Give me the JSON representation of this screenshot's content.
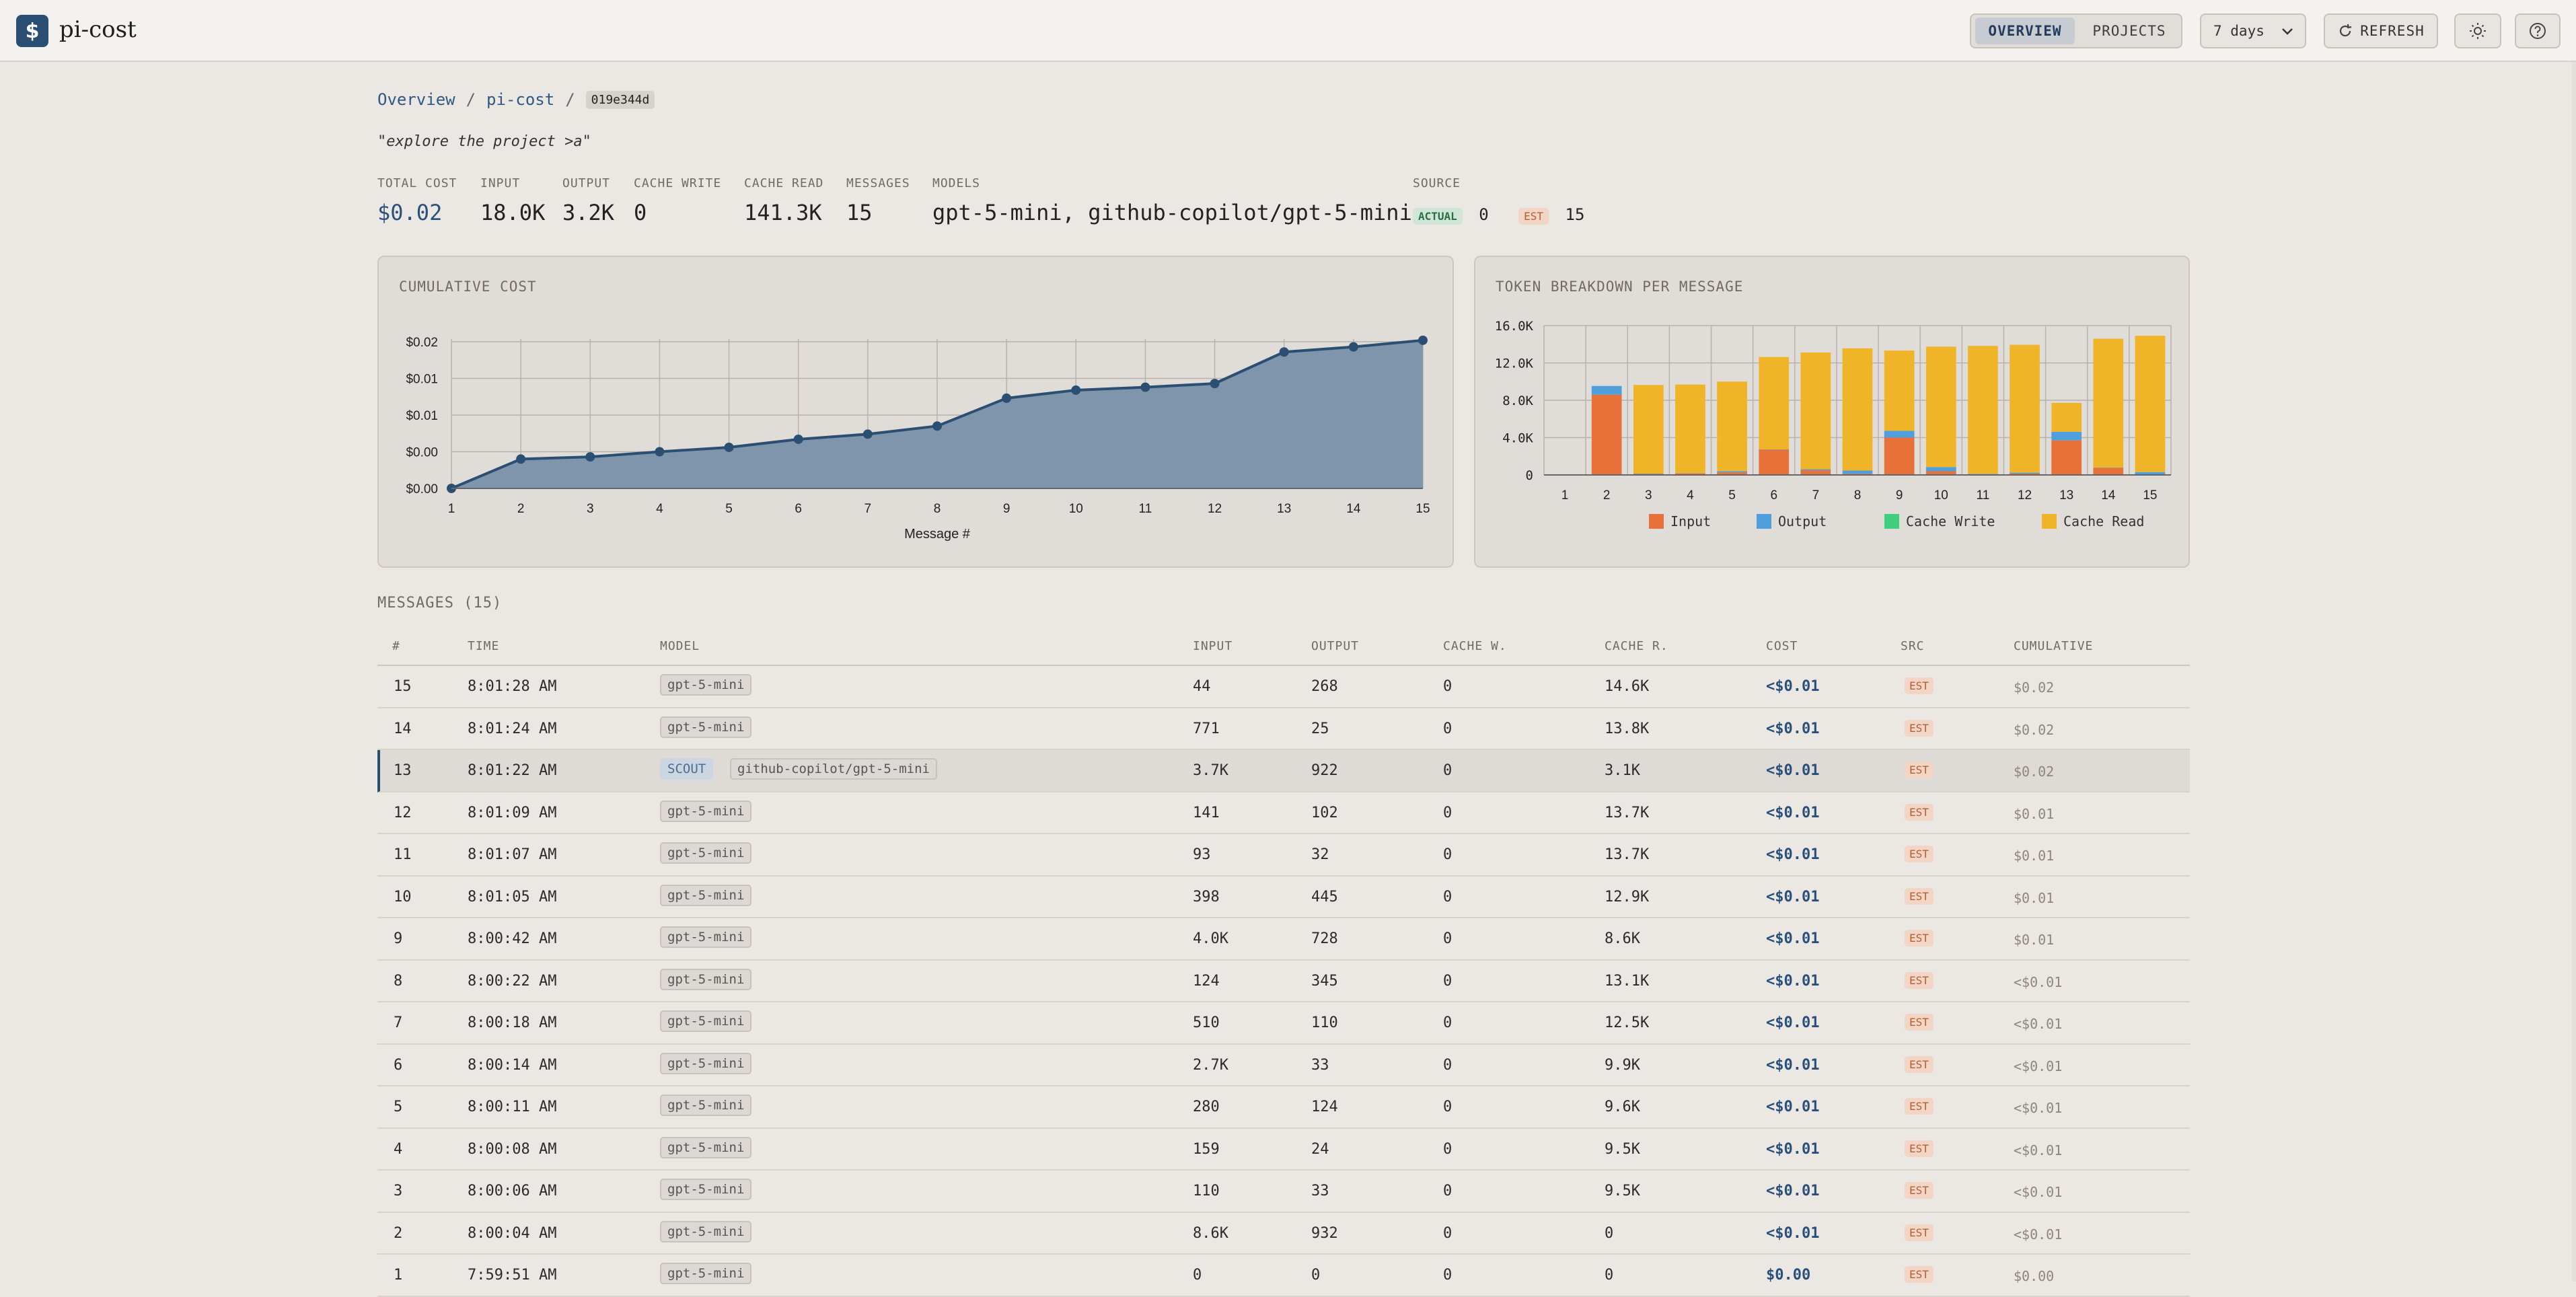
{
  "app": {
    "name": "pi-cost",
    "logo_glyph": "$"
  },
  "header": {
    "tabs": [
      {
        "label": "OVERVIEW",
        "active": true
      },
      {
        "label": "PROJECTS",
        "active": false
      }
    ],
    "range_select": "7 days",
    "refresh_label": "REFRESH",
    "theme_icon": "sun-icon",
    "help_icon": "help-icon"
  },
  "breadcrumb": {
    "items": [
      "Overview",
      "pi-cost"
    ],
    "current_id": "019e344d"
  },
  "session_prompt": "\"explore the project >a\"",
  "stats": {
    "total_cost": {
      "label": "TOTAL COST",
      "value": "$0.02"
    },
    "input": {
      "label": "INPUT",
      "value": "18.0K"
    },
    "output": {
      "label": "OUTPUT",
      "value": "3.2K"
    },
    "cache_write": {
      "label": "CACHE WRITE",
      "value": "0"
    },
    "cache_read": {
      "label": "CACHE READ",
      "value": "141.3K"
    },
    "messages": {
      "label": "MESSAGES",
      "value": "15"
    },
    "models": {
      "label": "MODELS",
      "value": "gpt-5-mini, github-copilot/gpt-5-mini"
    },
    "source": {
      "label": "SOURCE",
      "actual_label": "ACTUAL",
      "actual_count": "0",
      "est_label": "EST",
      "est_count": "15"
    }
  },
  "cumulative_panel_title": "CUMULATIVE COST",
  "tokens_panel_title": "TOKEN BREAKDOWN PER MESSAGE",
  "chart_data": [
    {
      "type": "area",
      "title": "CUMULATIVE COST",
      "xlabel": "Message #",
      "x": [
        1,
        2,
        3,
        4,
        5,
        6,
        7,
        8,
        9,
        10,
        11,
        12,
        13,
        14,
        15
      ],
      "values": [
        0.0,
        0.004,
        0.0043,
        0.005,
        0.0056,
        0.0067,
        0.0074,
        0.0085,
        0.0123,
        0.0134,
        0.0138,
        0.0143,
        0.0186,
        0.0193,
        0.0202
      ],
      "ylim": [
        0,
        0.02
      ],
      "y_ticks": [
        "$0.00",
        "$0.00",
        "$0.01",
        "$0.01",
        "$0.02"
      ],
      "color": "#2b4e73",
      "fill": "#7e95ab",
      "grid": true
    },
    {
      "type": "bar",
      "stacked": true,
      "title": "TOKEN BREAKDOWN PER MESSAGE",
      "categories": [
        "1",
        "2",
        "3",
        "4",
        "5",
        "6",
        "7",
        "8",
        "9",
        "10",
        "11",
        "12",
        "13",
        "14",
        "15"
      ],
      "series": [
        {
          "name": "Input",
          "color": "#e8713a",
          "values": [
            0,
            8600,
            110,
            159,
            280,
            2700,
            510,
            124,
            4000,
            398,
            93,
            141,
            3700,
            771,
            44
          ]
        },
        {
          "name": "Output",
          "color": "#4e9fdb",
          "values": [
            0,
            932,
            33,
            24,
            124,
            33,
            110,
            345,
            728,
            445,
            32,
            102,
            922,
            25,
            268
          ]
        },
        {
          "name": "Cache Write",
          "color": "#3fcf7e",
          "values": [
            0,
            0,
            0,
            0,
            0,
            0,
            0,
            0,
            0,
            0,
            0,
            0,
            0,
            0,
            0
          ]
        },
        {
          "name": "Cache Read",
          "color": "#f0b429",
          "values": [
            0,
            0,
            9500,
            9500,
            9600,
            9900,
            12500,
            13100,
            8600,
            12900,
            13700,
            13700,
            3100,
            13800,
            14600
          ]
        }
      ],
      "ylim": [
        0,
        16000
      ],
      "y_ticks": [
        "0",
        "4.0K",
        "8.0K",
        "12.0K",
        "16.0K"
      ],
      "grid": true,
      "legend": "bottom"
    }
  ],
  "messages": {
    "title": "MESSAGES (15)",
    "columns": [
      "#",
      "TIME",
      "MODEL",
      "INPUT",
      "OUTPUT",
      "CACHE W.",
      "CACHE R.",
      "COST",
      "SRC",
      "CUMULATIVE"
    ],
    "rows": [
      {
        "n": "15",
        "time": "8:01:28 AM",
        "model": "gpt-5-mini",
        "scout": "",
        "input": "44",
        "output": "268",
        "cw": "0",
        "cr": "14.6K",
        "cost": "<$0.01",
        "src": "EST",
        "cum": "$0.02"
      },
      {
        "n": "14",
        "time": "8:01:24 AM",
        "model": "gpt-5-mini",
        "scout": "",
        "input": "771",
        "output": "25",
        "cw": "0",
        "cr": "13.8K",
        "cost": "<$0.01",
        "src": "EST",
        "cum": "$0.02"
      },
      {
        "n": "13",
        "time": "8:01:22 AM",
        "model": "github-copilot/gpt-5-mini",
        "scout": "SCOUT",
        "input": "3.7K",
        "output": "922",
        "cw": "0",
        "cr": "3.1K",
        "cost": "<$0.01",
        "src": "EST",
        "cum": "$0.02",
        "highlight": true
      },
      {
        "n": "12",
        "time": "8:01:09 AM",
        "model": "gpt-5-mini",
        "scout": "",
        "input": "141",
        "output": "102",
        "cw": "0",
        "cr": "13.7K",
        "cost": "<$0.01",
        "src": "EST",
        "cum": "$0.01"
      },
      {
        "n": "11",
        "time": "8:01:07 AM",
        "model": "gpt-5-mini",
        "scout": "",
        "input": "93",
        "output": "32",
        "cw": "0",
        "cr": "13.7K",
        "cost": "<$0.01",
        "src": "EST",
        "cum": "$0.01"
      },
      {
        "n": "10",
        "time": "8:01:05 AM",
        "model": "gpt-5-mini",
        "scout": "",
        "input": "398",
        "output": "445",
        "cw": "0",
        "cr": "12.9K",
        "cost": "<$0.01",
        "src": "EST",
        "cum": "$0.01"
      },
      {
        "n": "9",
        "time": "8:00:42 AM",
        "model": "gpt-5-mini",
        "scout": "",
        "input": "4.0K",
        "output": "728",
        "cw": "0",
        "cr": "8.6K",
        "cost": "<$0.01",
        "src": "EST",
        "cum": "$0.01"
      },
      {
        "n": "8",
        "time": "8:00:22 AM",
        "model": "gpt-5-mini",
        "scout": "",
        "input": "124",
        "output": "345",
        "cw": "0",
        "cr": "13.1K",
        "cost": "<$0.01",
        "src": "EST",
        "cum": "<$0.01"
      },
      {
        "n": "7",
        "time": "8:00:18 AM",
        "model": "gpt-5-mini",
        "scout": "",
        "input": "510",
        "output": "110",
        "cw": "0",
        "cr": "12.5K",
        "cost": "<$0.01",
        "src": "EST",
        "cum": "<$0.01"
      },
      {
        "n": "6",
        "time": "8:00:14 AM",
        "model": "gpt-5-mini",
        "scout": "",
        "input": "2.7K",
        "output": "33",
        "cw": "0",
        "cr": "9.9K",
        "cost": "<$0.01",
        "src": "EST",
        "cum": "<$0.01"
      },
      {
        "n": "5",
        "time": "8:00:11 AM",
        "model": "gpt-5-mini",
        "scout": "",
        "input": "280",
        "output": "124",
        "cw": "0",
        "cr": "9.6K",
        "cost": "<$0.01",
        "src": "EST",
        "cum": "<$0.01"
      },
      {
        "n": "4",
        "time": "8:00:08 AM",
        "model": "gpt-5-mini",
        "scout": "",
        "input": "159",
        "output": "24",
        "cw": "0",
        "cr": "9.5K",
        "cost": "<$0.01",
        "src": "EST",
        "cum": "<$0.01"
      },
      {
        "n": "3",
        "time": "8:00:06 AM",
        "model": "gpt-5-mini",
        "scout": "",
        "input": "110",
        "output": "33",
        "cw": "0",
        "cr": "9.5K",
        "cost": "<$0.01",
        "src": "EST",
        "cum": "<$0.01"
      },
      {
        "n": "2",
        "time": "8:00:04 AM",
        "model": "gpt-5-mini",
        "scout": "",
        "input": "8.6K",
        "output": "932",
        "cw": "0",
        "cr": "0",
        "cost": "<$0.01",
        "src": "EST",
        "cum": "<$0.01"
      },
      {
        "n": "1",
        "time": "7:59:51 AM",
        "model": "gpt-5-mini",
        "scout": "",
        "input": "0",
        "output": "0",
        "cw": "0",
        "cr": "0",
        "cost": "$0.00",
        "src": "EST",
        "cum": "$0.00"
      }
    ]
  }
}
